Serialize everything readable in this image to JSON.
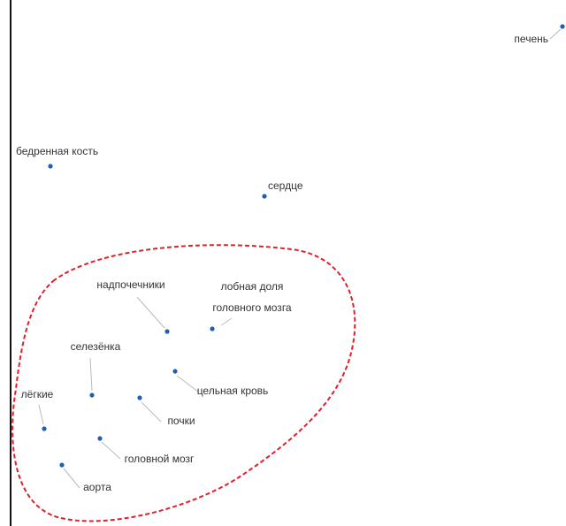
{
  "nodes": [
    {
      "label": "печень"
    },
    {
      "label": "бедренная кость"
    },
    {
      "label": "сердце"
    },
    {
      "label": "надпочечники"
    },
    {
      "lines": [
        "лобная доля",
        "головного мозга"
      ]
    },
    {
      "label": "селезёнка"
    },
    {
      "label": "лёгкие"
    },
    {
      "label": "цельная кровь"
    },
    {
      "label": "почки"
    },
    {
      "label": "головной мозг"
    },
    {
      "label": "аорта"
    }
  ]
}
